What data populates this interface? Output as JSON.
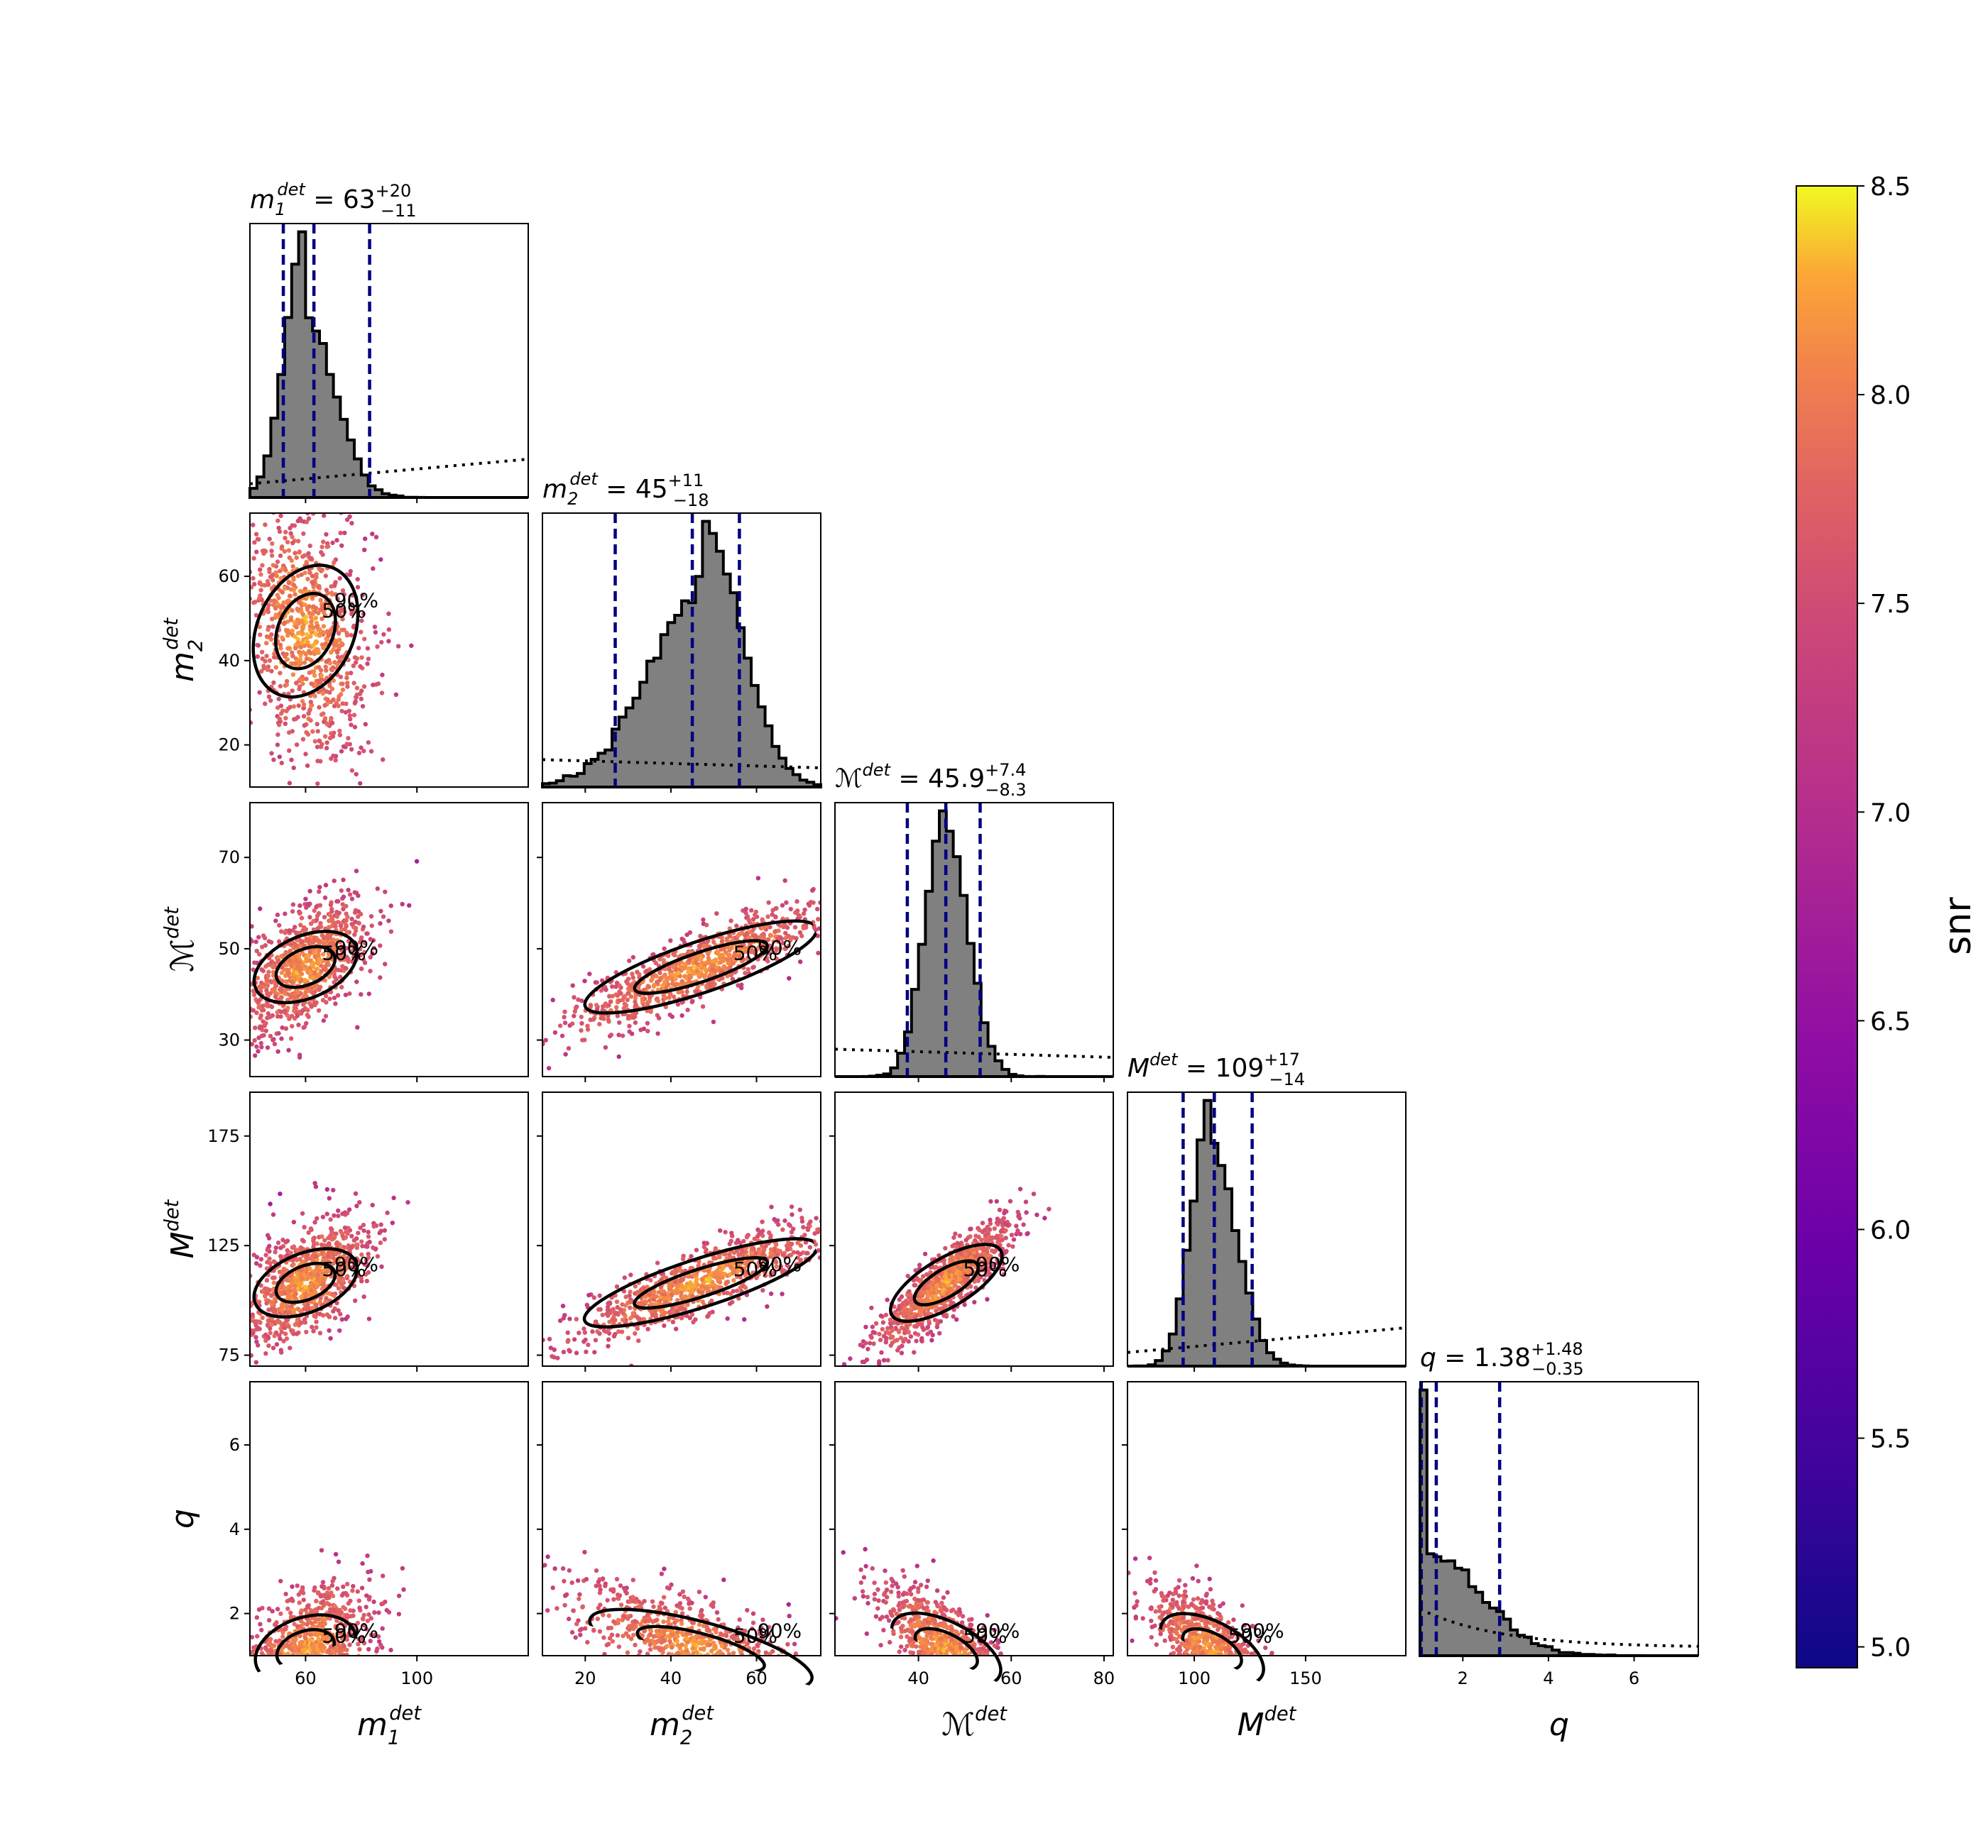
{
  "chart_data": {
    "type": "corner",
    "parameters": [
      {
        "key": "m1",
        "symbol": "m",
        "sub": "1",
        "sup": "det",
        "range": [
          40,
          140
        ],
        "ticks": [
          60,
          100
        ],
        "tick_labels": [
          "60",
          "100"
        ],
        "median": 63,
        "low": 52,
        "high": 83,
        "peak": 60,
        "sigma": 7,
        "tail": 0.5,
        "prior_slope": "rising"
      },
      {
        "key": "m2",
        "symbol": "m",
        "sub": "2",
        "sup": "det",
        "range": [
          10,
          75
        ],
        "ticks": [
          20,
          40,
          60
        ],
        "tick_labels": [
          "20",
          "40",
          "60"
        ],
        "median": 45,
        "low": 27,
        "high": 56,
        "peak": 47,
        "sigma": 9,
        "tail": -0.4,
        "prior_slope": "flat"
      },
      {
        "key": "chirp",
        "symbol": "ℳ",
        "sub": "",
        "sup": "det",
        "range": [
          22,
          82
        ],
        "ticks": [
          30,
          50,
          70
        ],
        "tick_labels": [
          "30",
          "50",
          "70"
        ],
        "xticks": [
          40,
          60,
          80
        ],
        "xtick_labels": [
          "40",
          "60",
          "80"
        ],
        "median": 45.9,
        "low": 37.6,
        "high": 53.3,
        "peak": 46,
        "sigma": 4.3,
        "tail": 0.1,
        "prior_slope": "flat"
      },
      {
        "key": "M",
        "symbol": "M",
        "sub": "",
        "sup": "det",
        "range": [
          70,
          195
        ],
        "ticks": [
          75,
          125,
          175
        ],
        "tick_labels": [
          "75",
          "125",
          "175"
        ],
        "xticks": [
          100,
          150
        ],
        "xtick_labels": [
          "100",
          "150"
        ],
        "median": 109,
        "low": 95,
        "high": 126,
        "peak": 108,
        "sigma": 8.5,
        "tail": 0.3,
        "prior_slope": "rising"
      },
      {
        "key": "q",
        "symbol": "q",
        "sub": "",
        "sup": "",
        "range": [
          1,
          7.5
        ],
        "ticks": [
          2,
          4,
          6
        ],
        "tick_labels": [
          "2",
          "4",
          "6"
        ],
        "median": 1.38,
        "low": 1.03,
        "high": 2.86,
        "peak": 1.15,
        "sigma": 0.45,
        "tail": 1.8,
        "prior_slope": "falling"
      }
    ],
    "titles": [
      {
        "param": "m1",
        "value": "63",
        "plus": "+20",
        "minus": "−11"
      },
      {
        "param": "m2",
        "value": "45",
        "plus": "+11",
        "minus": "−18"
      },
      {
        "param": "chirp",
        "value": "45.9",
        "plus": "+7.4",
        "minus": "−8.3"
      },
      {
        "param": "M",
        "value": "109",
        "plus": "+17",
        "minus": "−14"
      },
      {
        "param": "q",
        "value": "1.38",
        "plus": "+1.48",
        "minus": "−0.35"
      }
    ],
    "contour_levels": [
      "50%",
      "90%"
    ],
    "colorbar": {
      "label": "snr",
      "min": 4.95,
      "max": 8.5,
      "ticks": [
        5.0,
        5.5,
        6.0,
        6.5,
        7.0,
        7.5,
        8.0,
        8.5
      ],
      "tick_labels": [
        "5.0",
        "5.5",
        "6.0",
        "6.5",
        "7.0",
        "7.5",
        "8.0",
        "8.5"
      ],
      "colormap": "plasma"
    },
    "colors": {
      "hist_fill": "#808080",
      "hist_edge": "#000000",
      "quantile_line": "#000080",
      "prior_line": "#000000"
    }
  }
}
